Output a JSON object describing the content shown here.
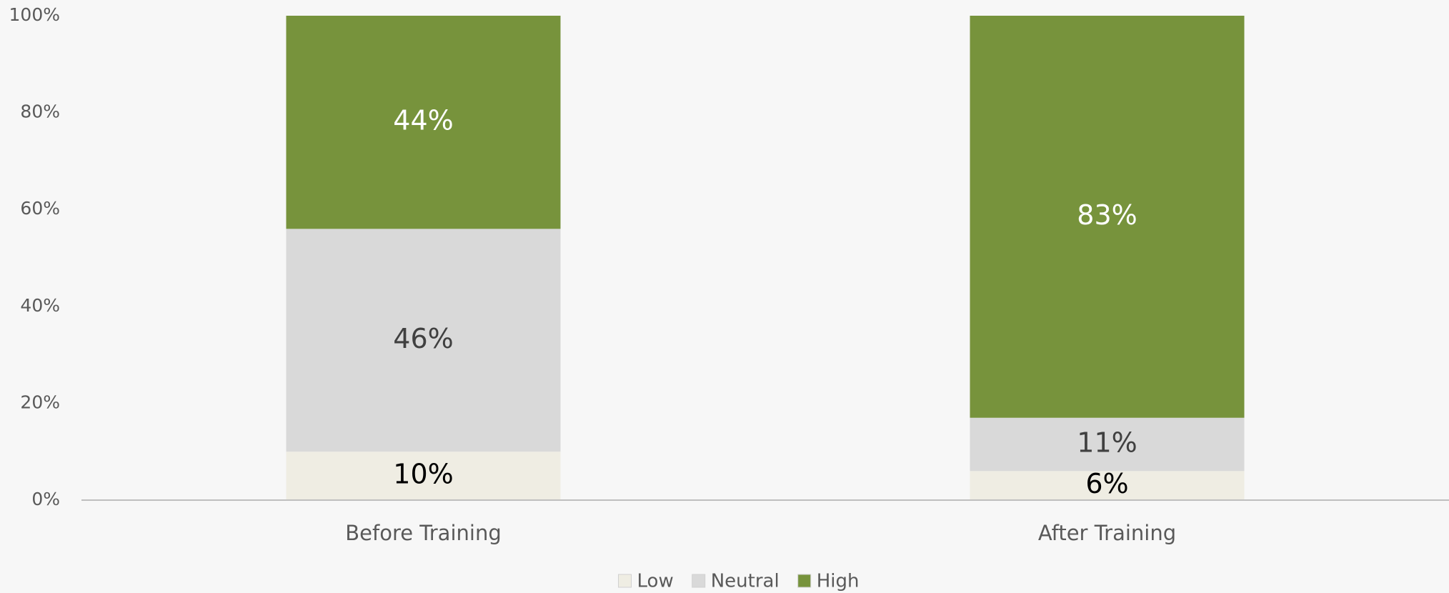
{
  "chart_data": {
    "type": "stacked_bar",
    "categories": [
      "Before Training",
      "After Training"
    ],
    "series": [
      {
        "name": "Low",
        "color": "#efede3",
        "label_color": "#000000",
        "values": [
          10,
          6
        ],
        "value_labels": [
          "10%",
          "6%"
        ]
      },
      {
        "name": "Neutral",
        "color": "#d9d9d9",
        "label_color": "#404040",
        "values": [
          46,
          11
        ],
        "value_labels": [
          "46%",
          "11%"
        ]
      },
      {
        "name": "High",
        "color": "#77933c",
        "label_color": "#ffffff",
        "values": [
          44,
          83
        ],
        "value_labels": [
          "44%",
          "83%"
        ]
      }
    ],
    "ylim": [
      0,
      100
    ],
    "yticks": [
      {
        "value": 0,
        "label": "0%"
      },
      {
        "value": 20,
        "label": "20%"
      },
      {
        "value": 40,
        "label": "40%"
      },
      {
        "value": 60,
        "label": "60%"
      },
      {
        "value": 80,
        "label": "80%"
      },
      {
        "value": 100,
        "label": "100%"
      }
    ],
    "grid": false,
    "legend": "bottom"
  }
}
